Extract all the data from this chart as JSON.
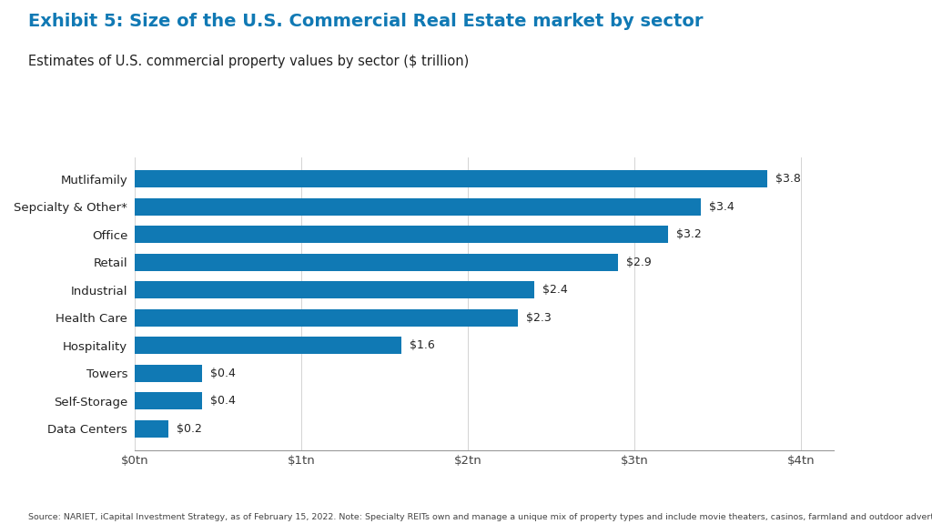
{
  "title": "Exhibit 5: Size of the U.S. Commercial Real Estate market by sector",
  "subtitle": "Estimates of U.S. commercial property values by sector ($ trillion)",
  "footnote": "Source: NARIET, iCapital Investment Strategy, as of February 15, 2022. Note: Specialty REITs own and manage a unique mix of property types and include movie theaters, casinos, farmland and outdoor advertising sites. For illustrative purposes only. Past performance is not indicative of future results. Future results are not guaranteed.",
  "categories": [
    "Data Centers",
    "Self-Storage",
    "Towers",
    "Hospitality",
    "Health Care",
    "Industrial",
    "Retail",
    "Office",
    "Sepcialty & Other*",
    "Mutlifamily"
  ],
  "values": [
    0.2,
    0.4,
    0.4,
    1.6,
    2.3,
    2.4,
    2.9,
    3.2,
    3.4,
    3.8
  ],
  "labels": [
    "$0.2",
    "$0.4",
    "$0.4",
    "$1.6",
    "$2.3",
    "$2.4",
    "$2.9",
    "$3.2",
    "$3.4",
    "$3.8"
  ],
  "bar_color": "#1079b4",
  "title_color": "#1079b4",
  "subtitle_color": "#222222",
  "label_color": "#222222",
  "background_color": "#ffffff",
  "xlim": [
    0,
    4.2
  ],
  "xticks": [
    0,
    1,
    2,
    3,
    4
  ],
  "xtick_labels": [
    "$0tn",
    "$1tn",
    "$2tn",
    "$3tn",
    "$4tn"
  ],
  "title_fontsize": 14,
  "subtitle_fontsize": 10.5,
  "tick_fontsize": 9.5,
  "label_fontsize": 9,
  "category_fontsize": 9.5,
  "footnote_fontsize": 6.8,
  "bar_height": 0.62
}
